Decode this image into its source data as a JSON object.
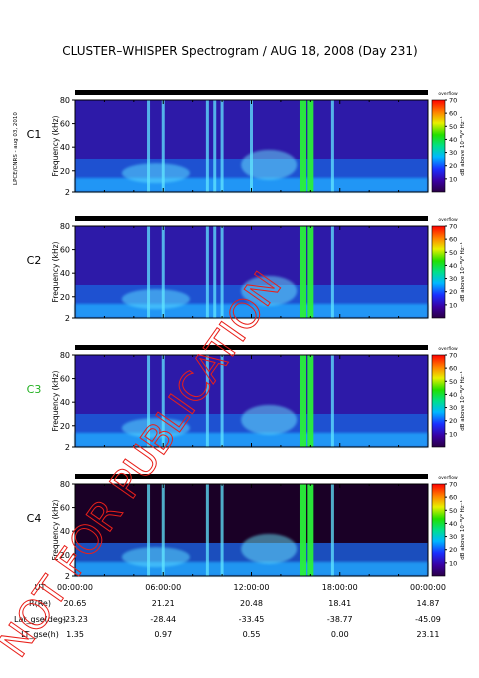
{
  "title": "CLUSTER–WHISPER Spectrogram / AUG 18, 2008 (Day 231)",
  "side_label": "LPCE/CNRS - aug 03, 2010",
  "watermark": "NOT FOR PUBLICATION",
  "accent_colors": {
    "watermark": "#e8201a",
    "c3_label": "#21b020",
    "c1_label": "#000000"
  },
  "chart_data": [
    {
      "type": "heatmap",
      "panel": "C1",
      "label": "C1",
      "ylabel": "Frequency (kHz)",
      "yticks": [
        2,
        20,
        40,
        60,
        80
      ],
      "ylim": [
        2,
        80
      ],
      "colorbar": {
        "label": "dB above 10⁻⁸V² Hz⁻¹",
        "ticks": [
          10,
          20,
          30,
          40,
          50,
          60,
          70
        ],
        "range": [
          0,
          70
        ],
        "cap": "overflow"
      },
      "x_range_ut": [
        "00:00:00",
        "24:00:00"
      ],
      "bright_bursts_ut": [
        "05:00",
        "06:00",
        "09:00",
        "09:30",
        "10:00",
        "12:00",
        "15:30",
        "16:00",
        "17:30"
      ]
    },
    {
      "type": "heatmap",
      "panel": "C2",
      "label": "C2",
      "ylabel": "Frequency (kHz)",
      "yticks": [
        2,
        20,
        40,
        60,
        80
      ],
      "ylim": [
        2,
        80
      ],
      "colorbar": {
        "label": "dB above 10⁻⁸V² Hz⁻¹",
        "ticks": [
          10,
          20,
          30,
          40,
          50,
          60,
          70
        ],
        "range": [
          0,
          70
        ],
        "cap": "overflow"
      },
      "x_range_ut": [
        "00:00:00",
        "24:00:00"
      ],
      "bright_bursts_ut": [
        "05:00",
        "06:00",
        "09:00",
        "09:30",
        "10:00",
        "15:30",
        "16:00",
        "17:30"
      ]
    },
    {
      "type": "heatmap",
      "panel": "C3",
      "label": "C3",
      "ylabel": "Frequency (kHz)",
      "yticks": [
        2,
        20,
        40,
        60,
        80
      ],
      "ylim": [
        2,
        80
      ],
      "colorbar": {
        "label": "dB above 10⁻⁸V² Hz⁻¹",
        "ticks": [
          10,
          20,
          30,
          40,
          50,
          60,
          70
        ],
        "range": [
          0,
          70
        ],
        "cap": "overflow"
      },
      "x_range_ut": [
        "00:00:00",
        "24:00:00"
      ],
      "bright_bursts_ut": [
        "05:00",
        "06:00",
        "09:00",
        "10:00",
        "15:30",
        "16:00",
        "17:30"
      ]
    },
    {
      "type": "heatmap",
      "panel": "C4",
      "label": "C4",
      "ylabel": "Frequency (kHz)",
      "yticks": [
        2,
        20,
        40,
        60,
        80
      ],
      "ylim": [
        2,
        80
      ],
      "colorbar": {
        "label": "dB above 10⁻⁸V² Hz⁻¹",
        "ticks": [
          10,
          20,
          30,
          40,
          50,
          60,
          70
        ],
        "range": [
          0,
          70
        ],
        "cap": "overflow"
      },
      "x_range_ut": [
        "00:00:00",
        "24:00:00"
      ],
      "bright_bursts_ut": [
        "05:00",
        "06:00",
        "09:00",
        "10:00",
        "15:30",
        "16:00",
        "17:30"
      ]
    }
  ],
  "ephemeris": {
    "rows": [
      {
        "label": "UT",
        "values": [
          "00:00:00",
          "06:00:00",
          "12:00:00",
          "18:00:00",
          "00:00:00"
        ]
      },
      {
        "label": "R(Re)",
        "values": [
          "20.65",
          "21.21",
          "20.48",
          "18.41",
          "14.87"
        ]
      },
      {
        "label": "Lat_gse(deg)",
        "values": [
          "-23.23",
          "-28.44",
          "-33.45",
          "-38.77",
          "-45.09"
        ]
      },
      {
        "label": "LT_gse(h)",
        "values": [
          "1.35",
          "0.97",
          "0.55",
          "0.00",
          "23.11"
        ]
      }
    ]
  }
}
